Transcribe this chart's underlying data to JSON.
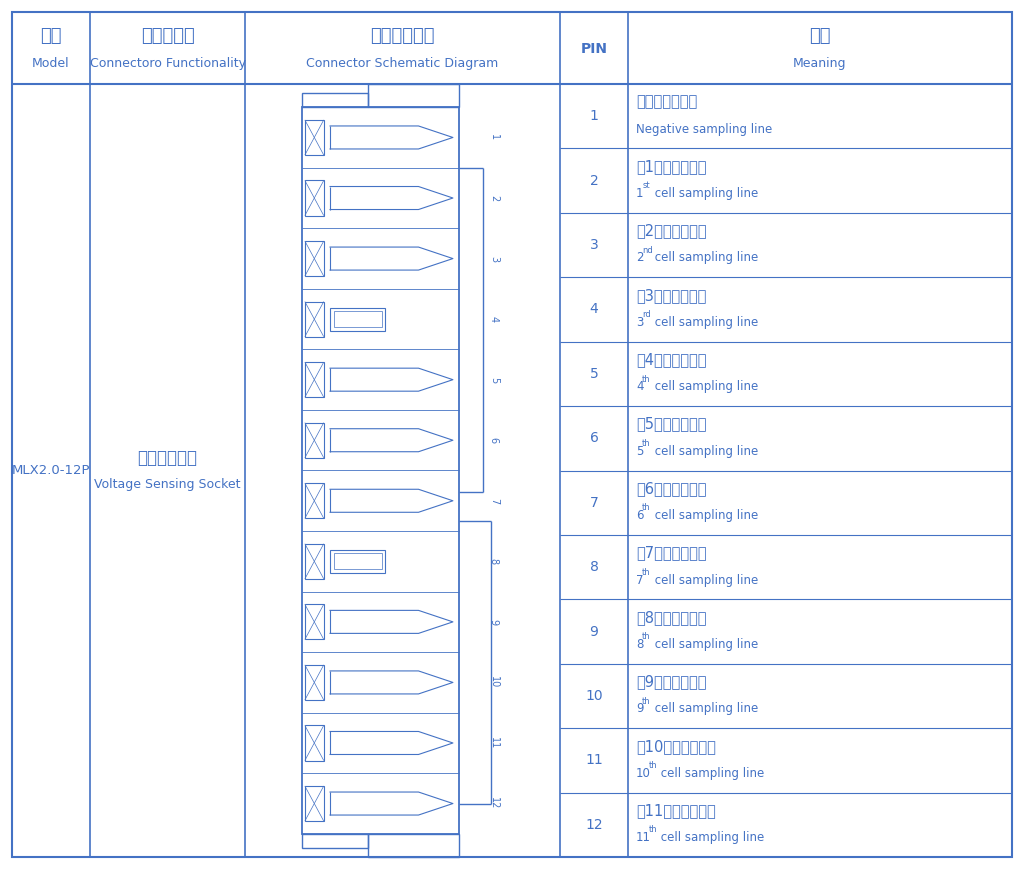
{
  "col_headers_zh": [
    "型号",
    "接插件功能",
    "接插件示意图",
    "",
    "含义"
  ],
  "col_headers_en": [
    "Model",
    "Connectoro Functionality",
    "Connector Schematic Diagram",
    "PIN",
    "Meaning"
  ],
  "model": "MLX2.0-12P",
  "func_zh": "电压采集插座",
  "func_en": "Voltage Sensing Socket",
  "pins": [
    1,
    2,
    3,
    4,
    5,
    6,
    7,
    8,
    9,
    10,
    11,
    12
  ],
  "meanings_zh": [
    "电池负极采集线",
    "第1节电池采样线",
    "第2节电池采样线",
    "第3节电池采样线",
    "第4节电池采样线",
    "第5节电池采样线",
    "第6节电池采样线",
    "第7节电池采样线",
    "第8节电池采样线",
    "第9节电池采样线",
    "第10节电池采样线",
    "第11节电池采样线"
  ],
  "meanings_en": [
    "Negative sampling line",
    "1st cell sampling line",
    "2nd cell sampling line",
    "3rd cell sampling line",
    "4th cell sampling line",
    "5th cell sampling line",
    "6th cell sampling line",
    "7th cell sampling line",
    "8th cell sampling line",
    "9th cell sampling line",
    "10th cell sampling line",
    "11th cell sampling line"
  ],
  "superscripts": [
    "",
    "st",
    "nd",
    "rd",
    "th",
    "th",
    "th",
    "th",
    "th",
    "th",
    "th",
    "th"
  ],
  "ordinals": [
    "",
    "1",
    "2",
    "3",
    "4",
    "5",
    "6",
    "7",
    "8",
    "9",
    "10",
    "11"
  ],
  "text_color": "#4472C4",
  "line_color": "#4472C4",
  "bg_color": "#FFFFFF",
  "fig_w": 10.24,
  "fig_h": 8.69,
  "dpi": 100
}
